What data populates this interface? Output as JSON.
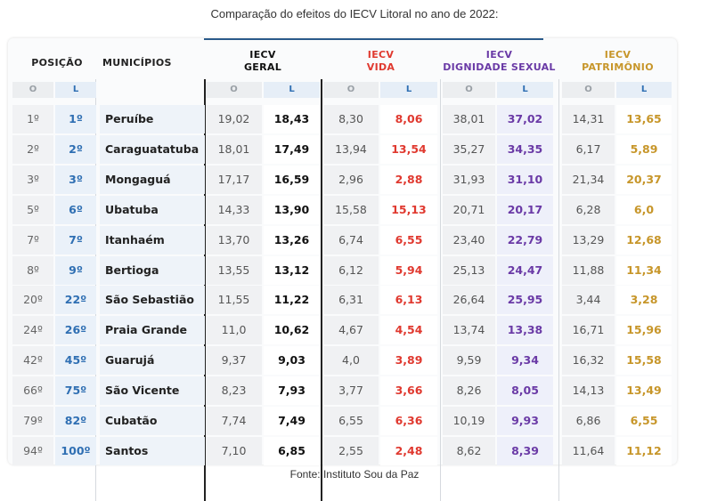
{
  "caption": "Comparação do efeitos do IECV Litoral no ano de 2022:",
  "source": "Fonte: Instituto Sou da Paz",
  "colors": {
    "vida": "#e0392f",
    "dignidade": "#6a3aa6",
    "patrimonio": "#c7962a",
    "posicao_l": "#2f6fb3"
  },
  "headers": {
    "posicao": "POSIÇÃO",
    "municipios": "MUNICÍPIOS",
    "geral_1": "IECV",
    "geral_2": "GERAL",
    "vida_1": "IECV",
    "vida_2": "VIDA",
    "dig_1": "IECV",
    "dig_2": "DIGNIDADE SEXUAL",
    "pat_1": "IECV",
    "pat_2": "PATRIMÔNIO",
    "o": "O",
    "l": "L"
  },
  "rows": [
    {
      "po": "1º",
      "pl": "1º",
      "mun": "Peruíbe",
      "go": "19,02",
      "gl": "18,43",
      "vo": "8,30",
      "vl": "8,06",
      "do": "38,01",
      "dl": "37,02",
      "pao": "14,31",
      "pal": "13,65"
    },
    {
      "po": "2º",
      "pl": "2º",
      "mun": "Caraguatatuba",
      "go": "18,01",
      "gl": "17,49",
      "vo": "13,94",
      "vl": "13,54",
      "do": "35,27",
      "dl": "34,35",
      "pao": "6,17",
      "pal": "5,89"
    },
    {
      "po": "3º",
      "pl": "3º",
      "mun": "Mongaguá",
      "go": "17,17",
      "gl": "16,59",
      "vo": "2,96",
      "vl": "2,88",
      "do": "31,93",
      "dl": "31,10",
      "pao": "21,34",
      "pal": "20,37"
    },
    {
      "po": "5º",
      "pl": "6º",
      "mun": "Ubatuba",
      "go": "14,33",
      "gl": "13,90",
      "vo": "15,58",
      "vl": "15,13",
      "do": "20,71",
      "dl": "20,17",
      "pao": "6,28",
      "pal": "6,0"
    },
    {
      "po": "7º",
      "pl": "7º",
      "mun": "Itanhaém",
      "go": "13,70",
      "gl": "13,26",
      "vo": "6,74",
      "vl": "6,55",
      "do": "23,40",
      "dl": "22,79",
      "pao": "13,29",
      "pal": "12,68"
    },
    {
      "po": "8º",
      "pl": "9º",
      "mun": "Bertioga",
      "go": "13,55",
      "gl": "13,12",
      "vo": "6,12",
      "vl": "5,94",
      "do": "25,13",
      "dl": "24,47",
      "pao": "11,88",
      "pal": "11,34"
    },
    {
      "po": "20º",
      "pl": "22º",
      "mun": "São Sebastião",
      "go": "11,55",
      "gl": "11,22",
      "vo": "6,31",
      "vl": "6,13",
      "do": "26,64",
      "dl": "25,95",
      "pao": "3,44",
      "pal": "3,28"
    },
    {
      "po": "24º",
      "pl": "26º",
      "mun": "Praia Grande",
      "go": "11,0",
      "gl": "10,62",
      "vo": "4,67",
      "vl": "4,54",
      "do": "13,74",
      "dl": "13,38",
      "pao": "16,71",
      "pal": "15,96"
    },
    {
      "po": "42º",
      "pl": "45º",
      "mun": "Guarujá",
      "go": "9,37",
      "gl": "9,03",
      "vo": "4,0",
      "vl": "3,89",
      "do": "9,59",
      "dl": "9,34",
      "pao": "16,32",
      "pal": "15,58"
    },
    {
      "po": "66º",
      "pl": "75º",
      "mun": "São Vicente",
      "go": "8,23",
      "gl": "7,93",
      "vo": "3,77",
      "vl": "3,66",
      "do": "8,26",
      "dl": "8,05",
      "pao": "14,13",
      "pal": "13,49"
    },
    {
      "po": "79º",
      "pl": "82º",
      "mun": "Cubatão",
      "go": "7,74",
      "gl": "7,49",
      "vo": "6,55",
      "vl": "6,36",
      "do": "10,19",
      "dl": "9,93",
      "pao": "6,86",
      "pal": "6,55"
    },
    {
      "po": "94º",
      "pl": "100º",
      "mun": "Santos",
      "go": "7,10",
      "gl": "6,85",
      "vo": "2,55",
      "vl": "2,48",
      "do": "8,62",
      "dl": "8,39",
      "pao": "11,64",
      "pal": "11,12"
    }
  ]
}
